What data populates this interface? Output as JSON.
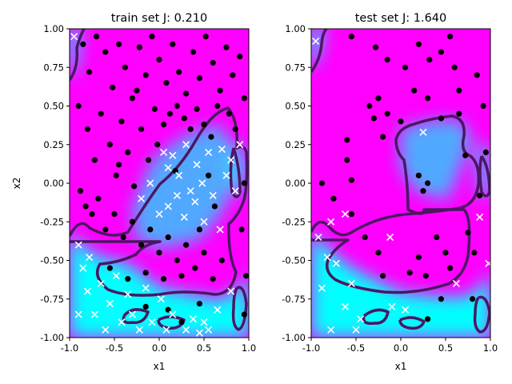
{
  "chart_data": [
    {
      "type": "scatter",
      "title": "train set J: 0.210",
      "xlabel": "x1",
      "ylabel": "x2",
      "xlim": [
        -1.0,
        1.0
      ],
      "ylim": [
        -1.0,
        1.0
      ],
      "x_ticks": [
        "-1.0",
        "-0.5",
        "0.0",
        "0.5",
        "1.0"
      ],
      "y_ticks": [
        "-1.00",
        "-0.75",
        "-0.50",
        "-0.25",
        "0.00",
        "0.25",
        "0.50",
        "0.75",
        "1.00"
      ],
      "background": "decision-function heatmap (magenta = class 1 region, cyan = class 0 region)",
      "decision_boundary_color": "#4b1763",
      "series": [
        {
          "marker": "circle",
          "color": "#000000",
          "points": [
            [
              -0.85,
              0.9
            ],
            [
              -0.78,
              0.72
            ],
            [
              -0.7,
              0.95
            ],
            [
              -0.6,
              0.85
            ],
            [
              -0.52,
              0.62
            ],
            [
              -0.45,
              0.9
            ],
            [
              -0.38,
              0.75
            ],
            [
              -0.3,
              0.55
            ],
            [
              -0.22,
              0.88
            ],
            [
              -0.15,
              0.7
            ],
            [
              -0.08,
              0.95
            ],
            [
              0.0,
              0.8
            ],
            [
              0.08,
              0.65
            ],
            [
              0.15,
              0.9
            ],
            [
              0.22,
              0.72
            ],
            [
              0.3,
              0.58
            ],
            [
              0.38,
              0.85
            ],
            [
              0.45,
              0.68
            ],
            [
              0.52,
              0.95
            ],
            [
              0.6,
              0.78
            ],
            [
              0.68,
              0.6
            ],
            [
              0.75,
              0.88
            ],
            [
              0.82,
              0.7
            ],
            [
              0.9,
              0.82
            ],
            [
              0.95,
              0.55
            ],
            [
              -0.9,
              0.5
            ],
            [
              -0.8,
              0.35
            ],
            [
              -0.72,
              0.15
            ],
            [
              -0.65,
              0.45
            ],
            [
              -0.55,
              0.25
            ],
            [
              -0.48,
              0.05
            ],
            [
              -0.42,
              0.4
            ],
            [
              -0.35,
              0.2
            ],
            [
              -0.28,
              -0.02
            ],
            [
              -0.2,
              0.35
            ],
            [
              -0.12,
              0.15
            ],
            [
              -0.05,
              0.48
            ],
            [
              0.05,
              0.38
            ],
            [
              0.12,
              0.45
            ],
            [
              0.2,
              0.5
            ],
            [
              0.28,
              0.42
            ],
            [
              0.35,
              0.35
            ],
            [
              0.42,
              0.48
            ],
            [
              0.5,
              0.38
            ],
            [
              0.58,
              0.3
            ],
            [
              0.65,
              0.5
            ],
            [
              0.78,
              0.45
            ],
            [
              0.85,
              0.35
            ],
            [
              -0.88,
              -0.05
            ],
            [
              -0.82,
              -0.15
            ],
            [
              -0.75,
              -0.2
            ],
            [
              -0.68,
              -0.1
            ],
            [
              -0.6,
              -0.3
            ],
            [
              -0.5,
              -0.2
            ],
            [
              -0.4,
              -0.35
            ],
            [
              -0.3,
              -0.25
            ],
            [
              -0.2,
              -0.4
            ],
            [
              -0.1,
              -0.3
            ],
            [
              0.0,
              -0.45
            ],
            [
              0.1,
              -0.35
            ],
            [
              0.2,
              -0.5
            ],
            [
              0.3,
              -0.4
            ],
            [
              0.4,
              -0.55
            ],
            [
              0.5,
              -0.45
            ],
            [
              0.6,
              -0.62
            ],
            [
              0.7,
              -0.5
            ],
            [
              0.05,
              -0.62
            ],
            [
              -0.15,
              -0.58
            ],
            [
              0.25,
              -0.6
            ],
            [
              -0.55,
              -0.55
            ],
            [
              -0.35,
              -0.62
            ],
            [
              0.45,
              -0.3
            ],
            [
              0.55,
              0.05
            ],
            [
              0.62,
              -0.15
            ],
            [
              0.95,
              0.0
            ],
            [
              0.92,
              -0.3
            ],
            [
              0.97,
              -0.6
            ],
            [
              0.95,
              -0.85
            ],
            [
              -0.15,
              -0.8
            ],
            [
              0.1,
              -0.82
            ],
            [
              0.25,
              -0.9
            ],
            [
              0.45,
              -0.78
            ],
            [
              -0.45,
              0.12
            ],
            [
              -0.25,
              0.6
            ],
            [
              0.18,
              0.08
            ],
            [
              -0.02,
              0.25
            ]
          ]
        },
        {
          "marker": "x",
          "color": "#ffffff",
          "points": [
            [
              -0.95,
              0.95
            ],
            [
              -0.9,
              -0.4
            ],
            [
              -0.85,
              -0.55
            ],
            [
              -0.8,
              -0.7
            ],
            [
              -0.72,
              -0.85
            ],
            [
              -0.65,
              -0.65
            ],
            [
              -0.6,
              -0.95
            ],
            [
              -0.55,
              -0.78
            ],
            [
              -0.48,
              -0.6
            ],
            [
              -0.42,
              -0.9
            ],
            [
              -0.35,
              -0.72
            ],
            [
              -0.3,
              -0.85
            ],
            [
              -0.22,
              -0.95
            ],
            [
              -0.15,
              -0.68
            ],
            [
              -0.08,
              -0.9
            ],
            [
              0.02,
              -0.75
            ],
            [
              0.08,
              -0.95
            ],
            [
              0.15,
              -0.85
            ],
            [
              0.3,
              -0.95
            ],
            [
              0.38,
              -0.88
            ],
            [
              0.45,
              -0.97
            ],
            [
              0.5,
              -0.9
            ],
            [
              0.55,
              -0.95
            ],
            [
              0.65,
              -0.82
            ],
            [
              0.8,
              -0.7
            ],
            [
              -0.9,
              -0.85
            ],
            [
              -0.78,
              -0.48
            ],
            [
              0.05,
              0.2
            ],
            [
              0.1,
              0.1
            ],
            [
              0.15,
              0.18
            ],
            [
              0.22,
              0.05
            ],
            [
              0.3,
              0.25
            ],
            [
              0.35,
              -0.05
            ],
            [
              0.42,
              0.12
            ],
            [
              0.48,
              0.0
            ],
            [
              0.55,
              0.2
            ],
            [
              0.6,
              -0.08
            ],
            [
              0.7,
              0.22
            ],
            [
              0.75,
              0.05
            ],
            [
              0.8,
              0.15
            ],
            [
              0.85,
              -0.05
            ],
            [
              0.9,
              0.25
            ],
            [
              0.0,
              -0.2
            ],
            [
              0.1,
              -0.15
            ],
            [
              0.2,
              -0.08
            ],
            [
              0.28,
              -0.22
            ],
            [
              0.4,
              -0.12
            ],
            [
              0.5,
              -0.25
            ],
            [
              0.68,
              -0.3
            ],
            [
              -0.2,
              -0.1
            ],
            [
              -0.1,
              0.0
            ]
          ]
        }
      ]
    },
    {
      "type": "scatter",
      "title": "test set J: 1.640",
      "xlabel": "x1",
      "ylabel": "",
      "xlim": [
        -1.0,
        1.0
      ],
      "ylim": [
        -1.0,
        1.0
      ],
      "x_ticks": [
        "-1.0",
        "-0.5",
        "0.0",
        "0.5",
        "1.0"
      ],
      "y_ticks": [
        "-1.00",
        "-0.75",
        "-0.50",
        "-0.25",
        "0.00",
        "0.25",
        "0.50",
        "0.75",
        "1.00"
      ],
      "background": "decision-function heatmap (magenta = class 1 region, cyan = class 0 region)",
      "decision_boundary_color": "#4b1763",
      "series": [
        {
          "marker": "circle",
          "color": "#000000",
          "points": [
            [
              -0.55,
              0.95
            ],
            [
              -0.28,
              0.88
            ],
            [
              -0.15,
              0.8
            ],
            [
              0.05,
              0.75
            ],
            [
              0.2,
              0.9
            ],
            [
              0.32,
              0.8
            ],
            [
              0.45,
              0.85
            ],
            [
              0.55,
              0.95
            ],
            [
              0.6,
              0.75
            ],
            [
              0.65,
              0.6
            ],
            [
              0.85,
              0.7
            ],
            [
              -0.6,
              0.28
            ],
            [
              -0.55,
              0.02
            ],
            [
              -0.6,
              0.15
            ],
            [
              -0.35,
              0.5
            ],
            [
              -0.3,
              0.42
            ],
            [
              -0.25,
              0.55
            ],
            [
              -0.2,
              0.3
            ],
            [
              -0.15,
              0.45
            ],
            [
              0.0,
              0.4
            ],
            [
              0.15,
              0.6
            ],
            [
              0.3,
              0.55
            ],
            [
              0.45,
              0.42
            ],
            [
              0.65,
              0.45
            ],
            [
              0.72,
              0.18
            ],
            [
              0.2,
              0.05
            ],
            [
              0.25,
              -0.05
            ],
            [
              0.3,
              0.0
            ],
            [
              0.95,
              0.2
            ],
            [
              0.92,
              0.5
            ],
            [
              0.88,
              -0.08
            ],
            [
              -0.88,
              0.0
            ],
            [
              -0.75,
              -0.1
            ],
            [
              -0.55,
              -0.2
            ],
            [
              -0.4,
              -0.35
            ],
            [
              -0.25,
              -0.45
            ],
            [
              -0.2,
              -0.6
            ],
            [
              0.1,
              -0.58
            ],
            [
              0.2,
              -0.48
            ],
            [
              0.28,
              -0.6
            ],
            [
              0.4,
              -0.35
            ],
            [
              0.5,
              -0.45
            ],
            [
              0.55,
              -0.55
            ],
            [
              0.45,
              -0.75
            ],
            [
              0.3,
              -0.88
            ],
            [
              0.75,
              -0.32
            ],
            [
              0.8,
              -0.75
            ],
            [
              0.82,
              -0.45
            ]
          ]
        },
        {
          "marker": "x",
          "color": "#ffffff",
          "points": [
            [
              -0.95,
              0.92
            ],
            [
              -0.92,
              -0.35
            ],
            [
              -0.88,
              -0.68
            ],
            [
              -0.82,
              -0.48
            ],
            [
              -0.78,
              -0.95
            ],
            [
              -0.72,
              -0.52
            ],
            [
              -0.62,
              -0.8
            ],
            [
              -0.55,
              -0.65
            ],
            [
              -0.5,
              -0.95
            ],
            [
              -0.45,
              -0.88
            ],
            [
              -0.12,
              -0.35
            ],
            [
              -0.1,
              -0.8
            ],
            [
              0.05,
              -0.82
            ],
            [
              0.25,
              0.33
            ],
            [
              0.62,
              -0.65
            ],
            [
              0.88,
              -0.22
            ],
            [
              0.98,
              -0.52
            ],
            [
              -0.62,
              -0.2
            ],
            [
              -0.78,
              -0.25
            ]
          ]
        }
      ]
    }
  ]
}
